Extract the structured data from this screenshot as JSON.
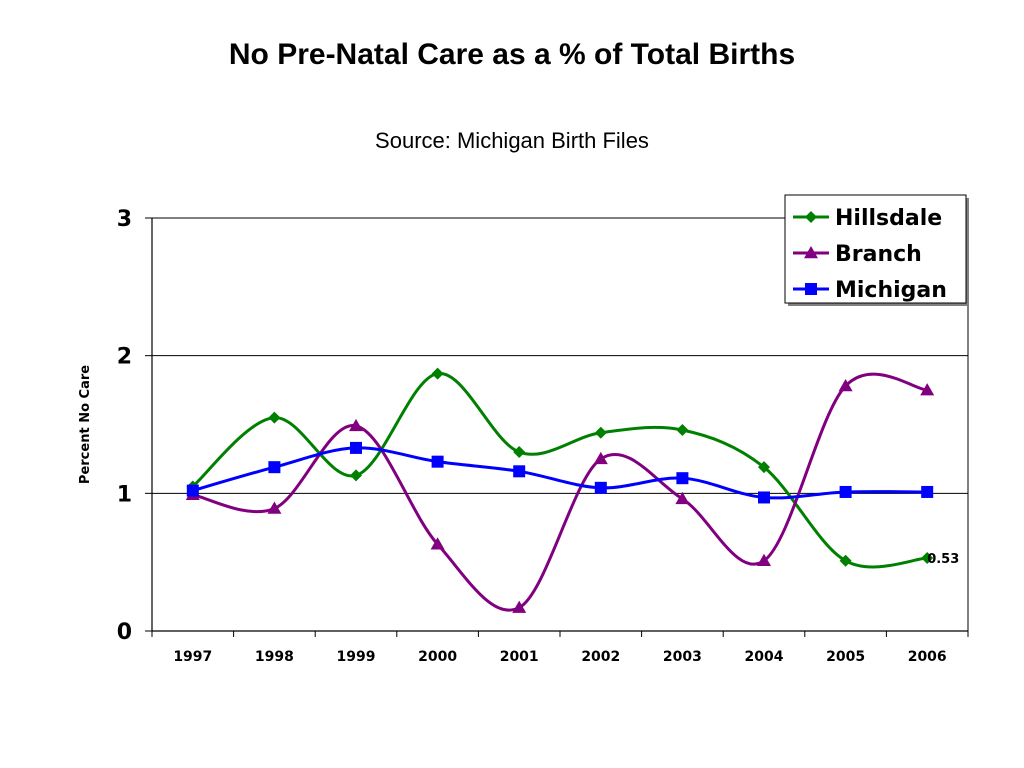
{
  "chart_data": {
    "type": "line",
    "title": "No Pre-Natal Care as a % of Total Births",
    "subtitle": "Source: Michigan Birth Files",
    "ylabel": "Percent No Care",
    "xlabel": "",
    "ylim": [
      0,
      3
    ],
    "yticks": [
      "0",
      "1",
      "2",
      "3"
    ],
    "categories": [
      "1997",
      "1998",
      "1999",
      "2000",
      "2001",
      "2002",
      "2003",
      "2004",
      "2005",
      "2006"
    ],
    "grid": "horizontal-major",
    "legend_position": "top-right",
    "series": [
      {
        "name": "Hillsdale",
        "color": "#008000",
        "marker": "diamond",
        "values": [
          1.05,
          1.55,
          1.13,
          1.87,
          1.3,
          1.44,
          1.46,
          1.19,
          0.51,
          0.53
        ]
      },
      {
        "name": "Branch",
        "color": "#800080",
        "marker": "triangle",
        "values": [
          0.99,
          0.89,
          1.49,
          0.63,
          0.17,
          1.25,
          0.96,
          0.51,
          1.78,
          1.75
        ]
      },
      {
        "name": "Michigan",
        "color": "#0000FF",
        "marker": "square",
        "values": [
          1.02,
          1.19,
          1.33,
          1.23,
          1.16,
          1.04,
          1.11,
          0.97,
          1.01,
          1.01
        ]
      }
    ],
    "annotations": [
      {
        "series": "Hillsdale",
        "index": 9,
        "text": "0.53"
      }
    ]
  }
}
